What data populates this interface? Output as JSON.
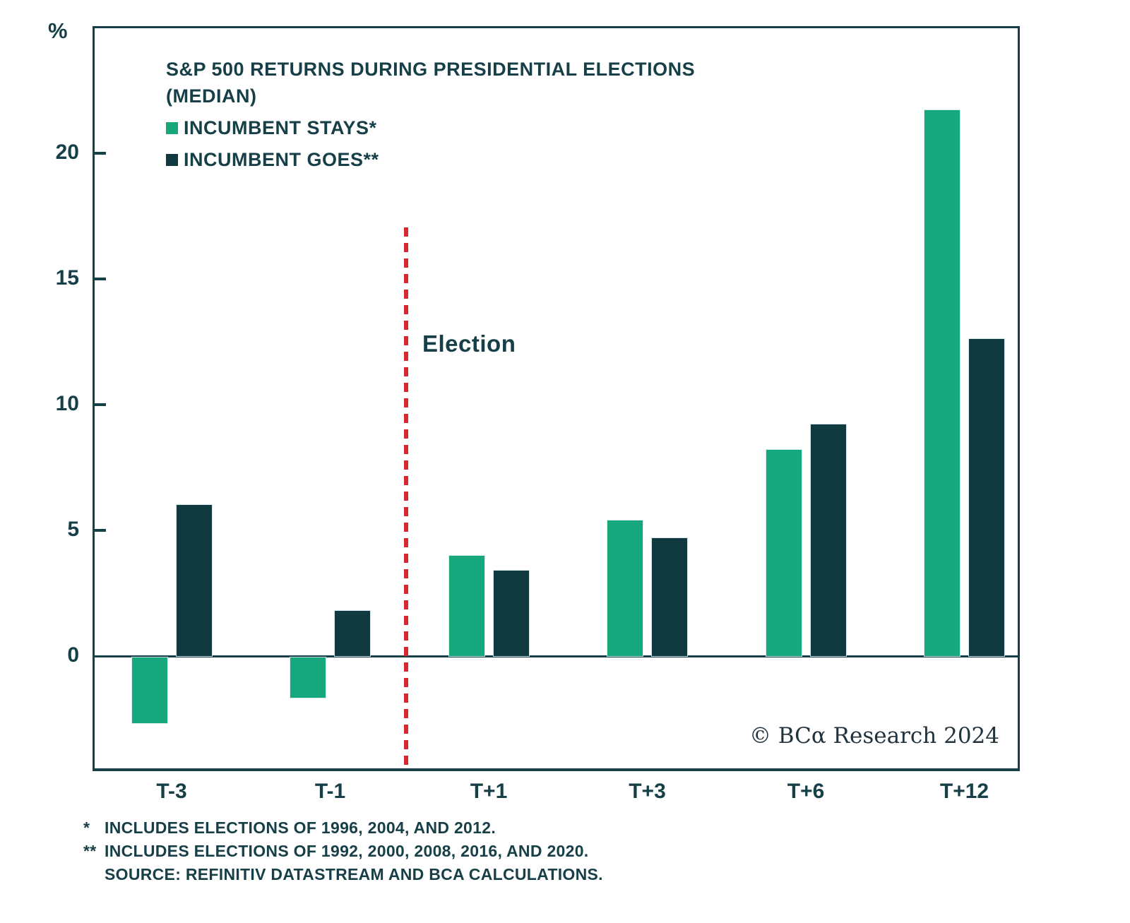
{
  "chart": {
    "y_unit": "%",
    "title_line1": "S&P 500 RETURNS DURING PRESIDENTIAL ELECTIONS",
    "title_line2": "(MEDIAN)",
    "election_label": "Election",
    "copyright": "© BCα Research 2024"
  },
  "chart_data": {
    "type": "bar",
    "title": "S&P 500 RETURNS DURING PRESIDENTIAL ELECTIONS (MEDIAN)",
    "xlabel": "",
    "ylabel": "%",
    "categories": [
      "T-3",
      "T-1",
      "T+1",
      "T+3",
      "T+6",
      "T+12"
    ],
    "series": [
      {
        "name": "INCUMBENT STAYS*",
        "color": "#17A77C",
        "values": [
          -2.6,
          -1.6,
          4.0,
          5.4,
          8.2,
          21.7
        ]
      },
      {
        "name": "INCUMBENT GOES**",
        "color": "#113A40",
        "values": [
          6.0,
          1.8,
          3.4,
          4.7,
          9.2,
          12.6
        ]
      }
    ],
    "y_ticks": [
      0,
      5,
      10,
      15,
      20
    ],
    "ylim": [
      -5.2,
      25.0
    ],
    "grid": false,
    "legend_position": "top-left",
    "annotations": [
      {
        "type": "vline-dashed",
        "label": "Election",
        "color": "#D7282F",
        "position": "between T-1 and T+1"
      }
    ]
  },
  "footnotes": [
    {
      "marker": "*",
      "text": "INCLUDES ELECTIONS OF 1996, 2004, AND  2012."
    },
    {
      "marker": "**",
      "text": "INCLUDES ELECTIONS OF 1992, 2000, 2008, 2016, AND 2020."
    },
    {
      "marker": "",
      "text": "SOURCE: REFINITIV DATASTREAM AND BCA CALCULATIONS."
    }
  ],
  "colors": {
    "text": "#173F47",
    "frame": "#173F47",
    "stays_green": "#17A77C",
    "goes_dark": "#113A40",
    "election_red": "#D7282F"
  }
}
